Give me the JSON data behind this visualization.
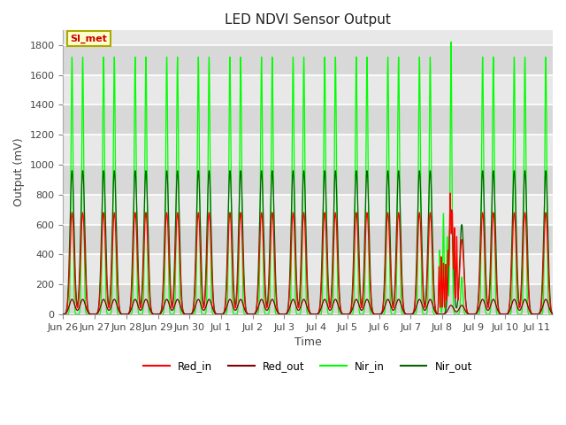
{
  "title": "LED NDVI Sensor Output",
  "xlabel": "Time",
  "ylabel": "Output (mV)",
  "ylim": [
    0,
    1900
  ],
  "yticks": [
    0,
    200,
    400,
    600,
    800,
    1000,
    1200,
    1400,
    1600,
    1800
  ],
  "background_color": "#ffffff",
  "plot_bg_color": "#e8e8e8",
  "grid_color": "#ffffff",
  "annotation_text": "SI_met",
  "annotation_bg": "#ffffcc",
  "annotation_border": "#aaaa00",
  "legend_entries": [
    "Red_in",
    "Red_out",
    "Nir_in",
    "Nir_out"
  ],
  "line_colors": {
    "Red_in": "#ff0000",
    "Red_out": "#800000",
    "Nir_in": "#00ff00",
    "Nir_out": "#006400"
  },
  "red_in_peak": 680,
  "red_out_peak": 100,
  "nir_in_peak": 1720,
  "nir_out_peak": 960,
  "total_days": 15.5,
  "tick_labels": [
    "Jun 26",
    "Jun 27",
    "Jun 28",
    "Jun 29",
    "Jun 30",
    "Jul 1",
    "Jul 2",
    "Jul 3",
    "Jul 4",
    "Jul 5",
    "Jul 6",
    "Jul 7",
    "Jul 8",
    "Jul 9",
    "Jul 10",
    "Jul 11"
  ],
  "figsize": [
    6.4,
    4.8
  ],
  "dpi": 100
}
